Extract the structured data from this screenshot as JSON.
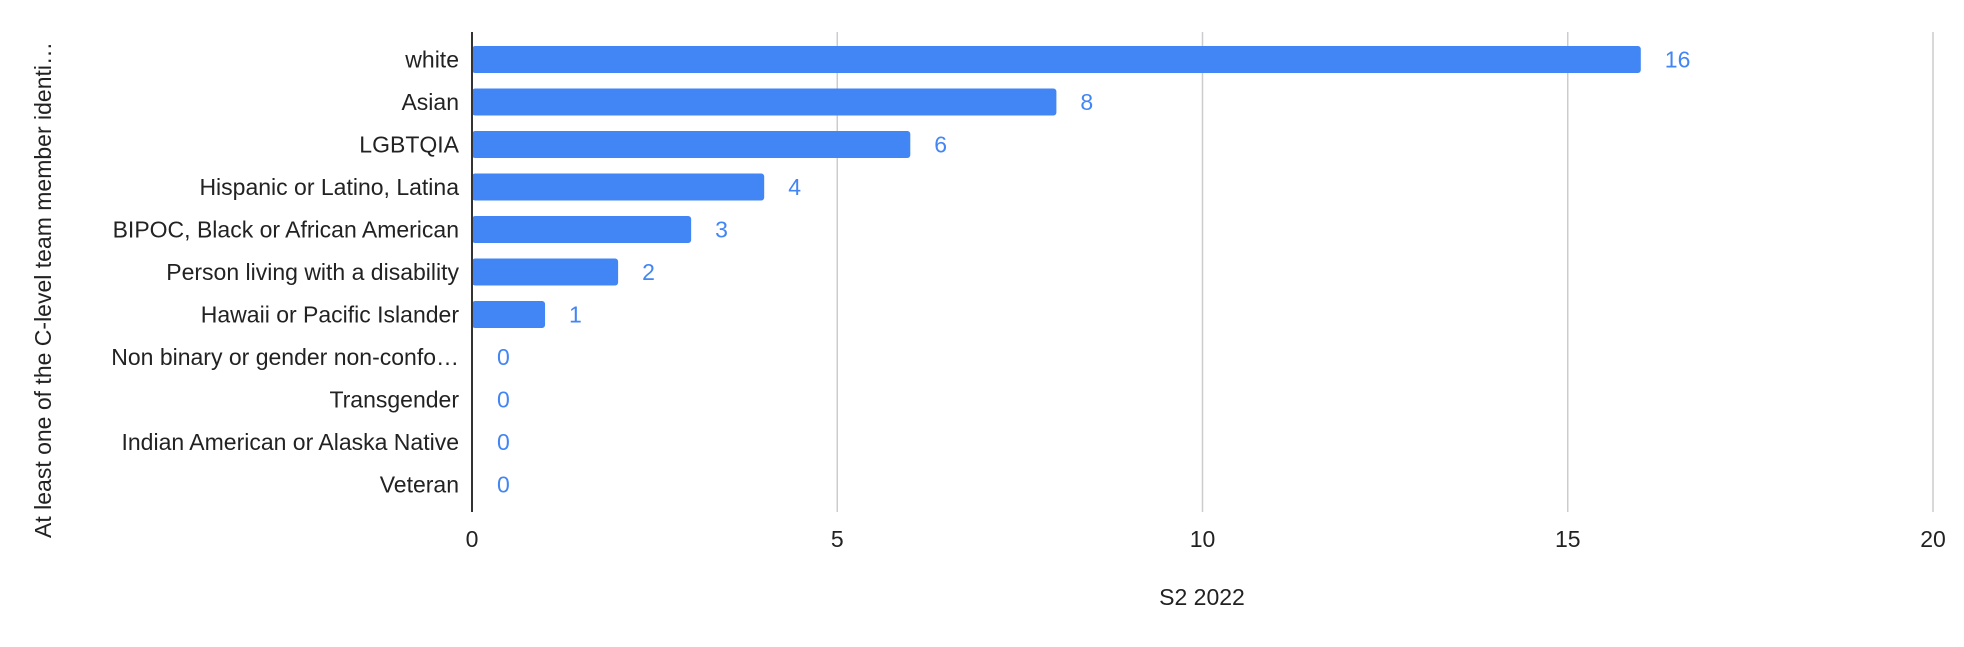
{
  "chart_data": {
    "type": "bar",
    "orientation": "horizontal",
    "title": "",
    "xlabel": "S2 2022",
    "ylabel": "At least one of the C-level team member identi…",
    "categories": [
      "white",
      "Asian",
      "LGBTQIA",
      "Hispanic or Latino, Latina",
      "BIPOC, Black or African American",
      "Person living with a disability",
      "Hawaii or Pacific Islander",
      "Non binary or gender non-confo…",
      "Transgender",
      "Indian American or Alaska Native",
      "Veteran"
    ],
    "values": [
      16,
      8,
      6,
      4,
      3,
      2,
      1,
      0,
      0,
      0,
      0
    ],
    "xlim": [
      0,
      20
    ],
    "xticks": [
      "0",
      "5",
      "10",
      "15",
      "20"
    ],
    "grid": true,
    "legend": "none",
    "bar_color": "#4285f4",
    "label_color": "#4285f4",
    "data_labels": true
  }
}
